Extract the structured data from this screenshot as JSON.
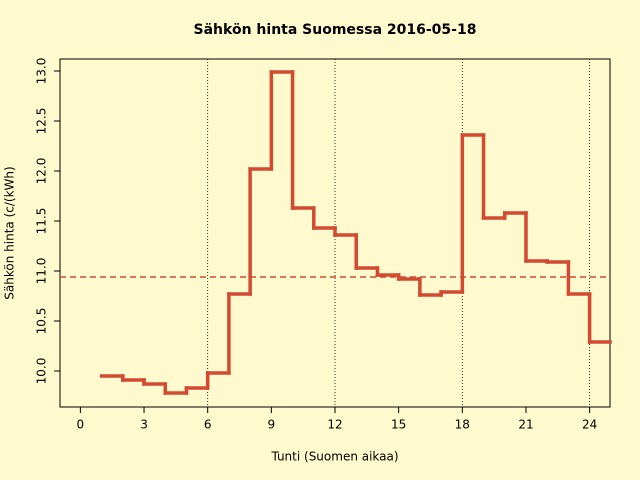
{
  "chart_data": {
    "type": "step",
    "title": "Sähkön hinta Suomessa 2016-05-18",
    "x_label": "Tunti (Suomen aikaa)",
    "y_label": "Sähkön hinta (c/(kWh)",
    "x": [
      1,
      2,
      3,
      4,
      5,
      6,
      7,
      8,
      9,
      10,
      11,
      12,
      13,
      14,
      15,
      16,
      17,
      18,
      19,
      20,
      21,
      22,
      23,
      24
    ],
    "series": [
      {
        "color": "#d24a32",
        "values": [
          9.95,
          9.91,
          9.87,
          9.78,
          9.83,
          9.98,
          10.77,
          12.02,
          12.99,
          11.63,
          11.43,
          11.36,
          11.03,
          10.96,
          10.92,
          10.76,
          10.79,
          12.36,
          11.53,
          11.58,
          11.1,
          11.09,
          10.77,
          10.29
        ]
      }
    ],
    "mean": 10.94,
    "mean_color": "#d24a32",
    "vlines": [
      6,
      12,
      18,
      24
    ],
    "xlim": [
      -0.96,
      24.96
    ],
    "xticks": [
      0,
      3,
      6,
      9,
      12,
      15,
      18,
      21,
      24
    ],
    "ylim": [
      9.64,
      13.12
    ],
    "yticks": [
      {
        "value": 10,
        "label": "10.0"
      },
      {
        "value": 10.5,
        "label": "10.5"
      },
      {
        "value": 11,
        "label": "11.0"
      },
      {
        "value": 11.5,
        "label": "11.5"
      },
      {
        "value": 12,
        "label": "12.0"
      },
      {
        "value": 12.5,
        "label": "12.5"
      },
      {
        "value": 13,
        "label": "13.0"
      }
    ]
  }
}
